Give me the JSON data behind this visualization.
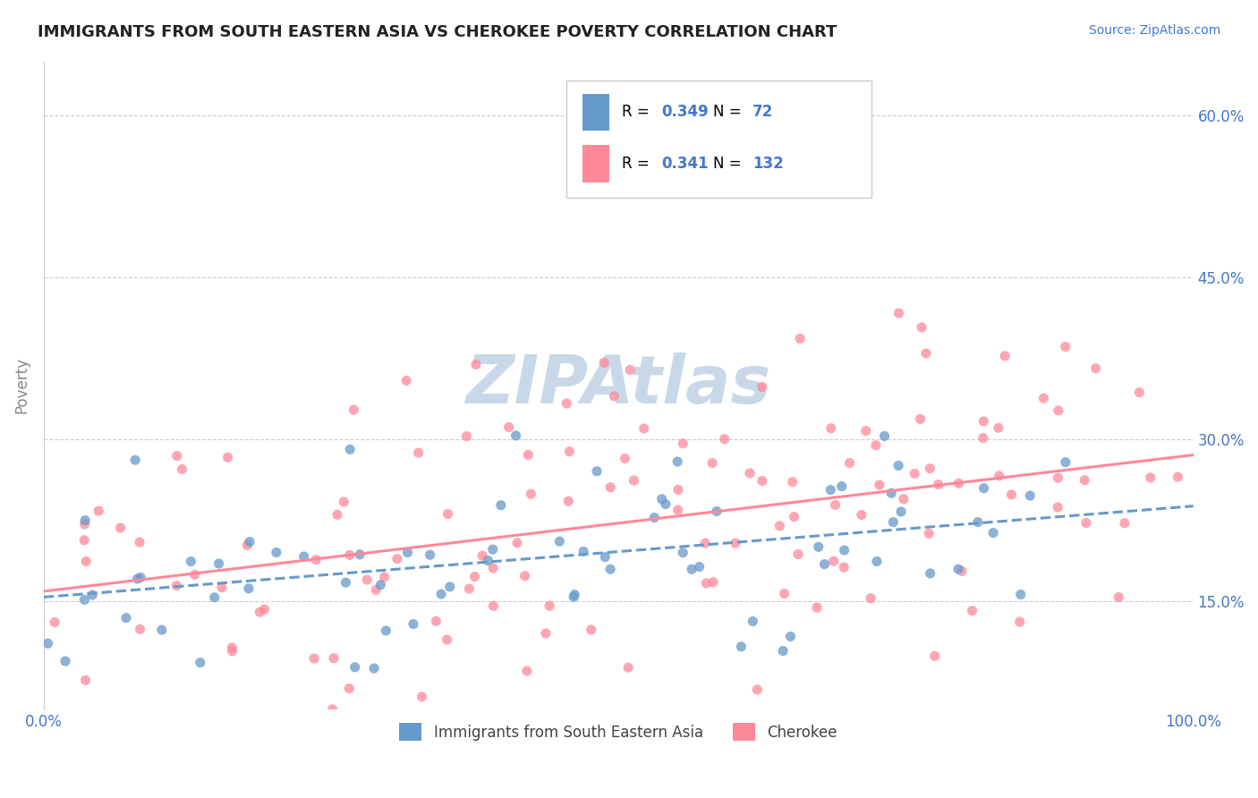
{
  "title": "IMMIGRANTS FROM SOUTH EASTERN ASIA VS CHEROKEE POVERTY CORRELATION CHART",
  "source_text": "Source: ZipAtlas.com",
  "ylabel": "Poverty",
  "x_min": 0.0,
  "x_max": 100.0,
  "y_min": 5.0,
  "y_max": 65.0,
  "y_ticks": [
    15.0,
    30.0,
    45.0,
    60.0
  ],
  "blue_R": 0.349,
  "blue_N": 72,
  "pink_R": 0.341,
  "pink_N": 132,
  "blue_color": "#6699cc",
  "pink_color": "#ff8899",
  "blue_label": "Immigrants from South Eastern Asia",
  "pink_label": "Cherokee",
  "watermark": "ZIPAtlas",
  "watermark_color": "#c8d8e8",
  "title_color": "#222222",
  "axis_label_color": "#4477cc",
  "grid_color": "#cccccc",
  "background_color": "#ffffff"
}
